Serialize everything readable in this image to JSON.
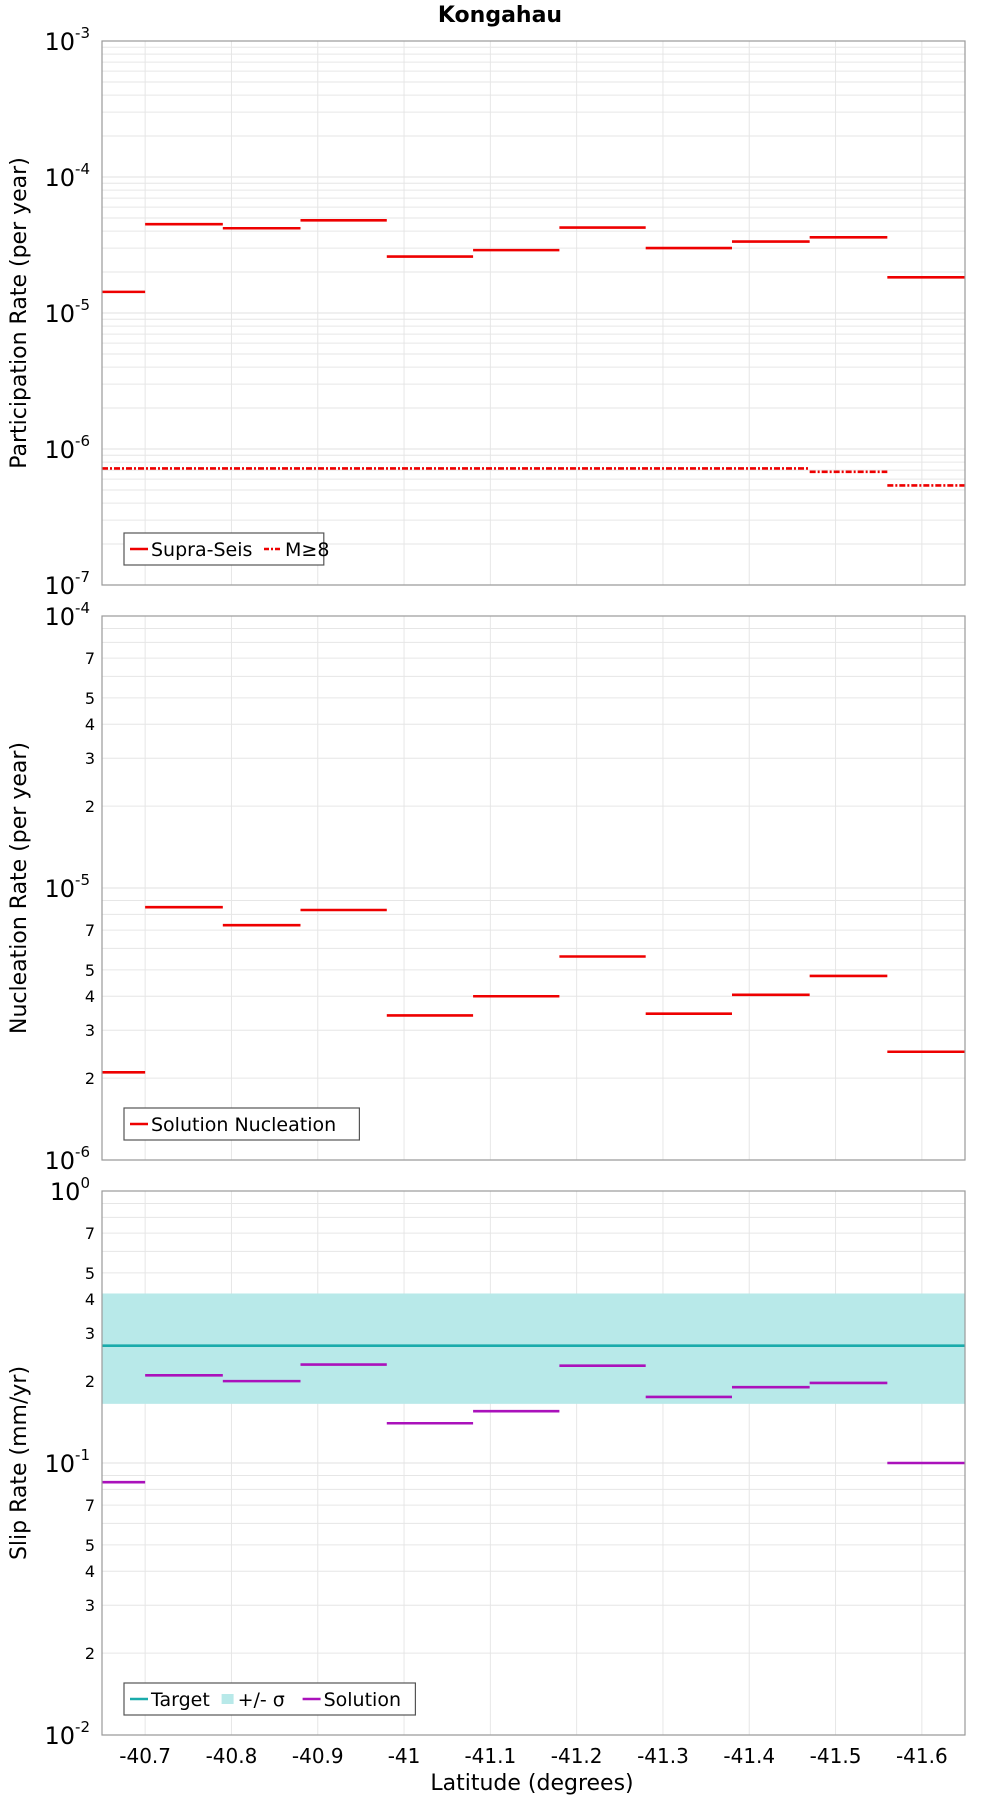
{
  "chart_data": [
    {
      "type": "line",
      "title": "Kongahau",
      "ylabel": "Participation Rate (per year)",
      "xlabel": "",
      "yscale": "log",
      "ylim": [
        1e-07,
        0.001
      ],
      "xlim": [
        -40.65,
        -41.65
      ],
      "grid": true,
      "legend": "bottom-left",
      "series": [
        {
          "name": "Supra-Seis",
          "style": "solid",
          "color": "#ee0000",
          "segments": [
            {
              "x": [
                -40.65,
                -40.7
              ],
              "y": 1.43e-05
            },
            {
              "x": [
                -40.7,
                -40.79
              ],
              "y": 4.5e-05
            },
            {
              "x": [
                -40.79,
                -40.88
              ],
              "y": 4.2e-05
            },
            {
              "x": [
                -40.88,
                -40.98
              ],
              "y": 4.8e-05
            },
            {
              "x": [
                -40.98,
                -41.08
              ],
              "y": 2.6e-05
            },
            {
              "x": [
                -41.08,
                -41.18
              ],
              "y": 2.9e-05
            },
            {
              "x": [
                -41.18,
                -41.28
              ],
              "y": 4.25e-05
            },
            {
              "x": [
                -41.28,
                -41.38
              ],
              "y": 3e-05
            },
            {
              "x": [
                -41.38,
                -41.47
              ],
              "y": 3.35e-05
            },
            {
              "x": [
                -41.47,
                -41.56
              ],
              "y": 3.6e-05
            },
            {
              "x": [
                -41.56,
                -41.65
              ],
              "y": 1.83e-05
            }
          ]
        },
        {
          "name": "M≥8",
          "style": "dashdot",
          "color": "#ee0000",
          "segments": [
            {
              "x": [
                -40.65,
                -41.47
              ],
              "y": 7.2e-07
            },
            {
              "x": [
                -41.47,
                -41.56
              ],
              "y": 6.8e-07
            },
            {
              "x": [
                -41.56,
                -41.65
              ],
              "y": 5.4e-07
            }
          ]
        }
      ]
    },
    {
      "type": "line",
      "title": "",
      "ylabel": "Nucleation Rate (per year)",
      "xlabel": "",
      "yscale": "log",
      "ylim": [
        1e-06,
        0.0001
      ],
      "xlim": [
        -40.65,
        -41.65
      ],
      "grid": true,
      "legend": "bottom-left",
      "series": [
        {
          "name": "Solution Nucleation",
          "style": "solid",
          "color": "#ee0000",
          "segments": [
            {
              "x": [
                -40.65,
                -40.7
              ],
              "y": 2.1e-06
            },
            {
              "x": [
                -40.7,
                -40.79
              ],
              "y": 8.5e-06
            },
            {
              "x": [
                -40.79,
                -40.88
              ],
              "y": 7.3e-06
            },
            {
              "x": [
                -40.88,
                -40.98
              ],
              "y": 8.3e-06
            },
            {
              "x": [
                -40.98,
                -41.08
              ],
              "y": 3.4e-06
            },
            {
              "x": [
                -41.08,
                -41.18
              ],
              "y": 4e-06
            },
            {
              "x": [
                -41.18,
                -41.28
              ],
              "y": 5.6e-06
            },
            {
              "x": [
                -41.28,
                -41.38
              ],
              "y": 3.45e-06
            },
            {
              "x": [
                -41.38,
                -41.47
              ],
              "y": 4.05e-06
            },
            {
              "x": [
                -41.47,
                -41.56
              ],
              "y": 4.75e-06
            },
            {
              "x": [
                -41.56,
                -41.65
              ],
              "y": 2.5e-06
            }
          ]
        }
      ]
    },
    {
      "type": "line",
      "title": "",
      "ylabel": "Slip Rate (mm/yr)",
      "xlabel": "Latitude (degrees)",
      "yscale": "log",
      "ylim": [
        0.01,
        1
      ],
      "xlim": [
        -40.65,
        -41.65
      ],
      "grid": true,
      "legend": "bottom-left",
      "band": {
        "name": "+/- σ",
        "color": "#b8e9e9",
        "y": [
          0.165,
          0.42
        ]
      },
      "series": [
        {
          "name": "Target",
          "style": "solid",
          "color": "#1aabab",
          "segments": [
            {
              "x": [
                -40.65,
                -41.65
              ],
              "y": 0.27
            }
          ]
        },
        {
          "name": "Solution",
          "style": "solid",
          "color": "#aa11bb",
          "segments": [
            {
              "x": [
                -40.65,
                -40.7
              ],
              "y": 0.085
            },
            {
              "x": [
                -40.7,
                -40.79
              ],
              "y": 0.21
            },
            {
              "x": [
                -40.79,
                -40.88
              ],
              "y": 0.2
            },
            {
              "x": [
                -40.88,
                -40.98
              ],
              "y": 0.23
            },
            {
              "x": [
                -40.98,
                -41.08
              ],
              "y": 0.14
            },
            {
              "x": [
                -41.08,
                -41.18
              ],
              "y": 0.155
            },
            {
              "x": [
                -41.18,
                -41.28
              ],
              "y": 0.228
            },
            {
              "x": [
                -41.28,
                -41.38
              ],
              "y": 0.175
            },
            {
              "x": [
                -41.38,
                -41.47
              ],
              "y": 0.19
            },
            {
              "x": [
                -41.47,
                -41.56
              ],
              "y": 0.197
            },
            {
              "x": [
                -41.56,
                -41.65
              ],
              "y": 0.1
            }
          ]
        }
      ]
    }
  ],
  "x_ticks": [
    "-40.7",
    "-40.8",
    "-40.9",
    "-41",
    "-41.1",
    "-41.2",
    "-41.3",
    "-41.4",
    "-41.5",
    "-41.6"
  ],
  "x_tick_values": [
    -40.7,
    -40.8,
    -40.9,
    -41.0,
    -41.1,
    -41.2,
    -41.3,
    -41.4,
    -41.5,
    -41.6
  ],
  "panel_ticks": [
    {
      "major": [
        {
          "value": 0.001,
          "base": "10",
          "exp": "-3"
        },
        {
          "value": 0.0001,
          "base": "10",
          "exp": "-4"
        },
        {
          "value": 1e-05,
          "base": "10",
          "exp": "-5"
        },
        {
          "value": 1e-06,
          "base": "10",
          "exp": "-6"
        },
        {
          "value": 1e-07,
          "base": "10",
          "exp": "-7"
        }
      ],
      "minor_labels": []
    },
    {
      "major": [
        {
          "value": 0.0001,
          "base": "10",
          "exp": "-4"
        },
        {
          "value": 1e-05,
          "base": "10",
          "exp": "-5"
        },
        {
          "value": 1e-06,
          "base": "10",
          "exp": "-6"
        }
      ],
      "minor_labels": [
        {
          "value": 7e-05,
          "label": "7"
        },
        {
          "value": 5e-05,
          "label": "5"
        },
        {
          "value": 4e-05,
          "label": "4"
        },
        {
          "value": 3e-05,
          "label": "3"
        },
        {
          "value": 2e-05,
          "label": "2"
        },
        {
          "value": 7e-06,
          "label": "7"
        },
        {
          "value": 5e-06,
          "label": "5"
        },
        {
          "value": 4e-06,
          "label": "4"
        },
        {
          "value": 3e-06,
          "label": "3"
        },
        {
          "value": 2e-06,
          "label": "2"
        }
      ]
    },
    {
      "major": [
        {
          "value": 1,
          "base": "10",
          "exp": "0"
        },
        {
          "value": 0.1,
          "base": "10",
          "exp": "-1"
        },
        {
          "value": 0.01,
          "base": "10",
          "exp": "-2"
        }
      ],
      "minor_labels": [
        {
          "value": 0.7,
          "label": "7"
        },
        {
          "value": 0.5,
          "label": "5"
        },
        {
          "value": 0.4,
          "label": "4"
        },
        {
          "value": 0.3,
          "label": "3"
        },
        {
          "value": 0.2,
          "label": "2"
        },
        {
          "value": 0.07,
          "label": "7"
        },
        {
          "value": 0.05,
          "label": "5"
        },
        {
          "value": 0.04,
          "label": "4"
        },
        {
          "value": 0.03,
          "label": "3"
        },
        {
          "value": 0.02,
          "label": "2"
        }
      ]
    }
  ],
  "legends": [
    [
      {
        "label": "Supra-Seis",
        "kind": "solid",
        "color": "#ee0000"
      },
      {
        "label": "M≥8",
        "kind": "dashdot",
        "color": "#ee0000"
      }
    ],
    [
      {
        "label": "Solution Nucleation",
        "kind": "solid",
        "color": "#ee0000"
      }
    ],
    [
      {
        "label": "Target",
        "kind": "solid",
        "color": "#1aabab"
      },
      {
        "label": "+/- σ",
        "kind": "box",
        "color": "#b8e9e9"
      },
      {
        "label": "Solution",
        "kind": "solid",
        "color": "#aa11bb"
      }
    ]
  ],
  "colors": {
    "grid": "#e6e6e6",
    "frame": "#9a9a9a"
  }
}
